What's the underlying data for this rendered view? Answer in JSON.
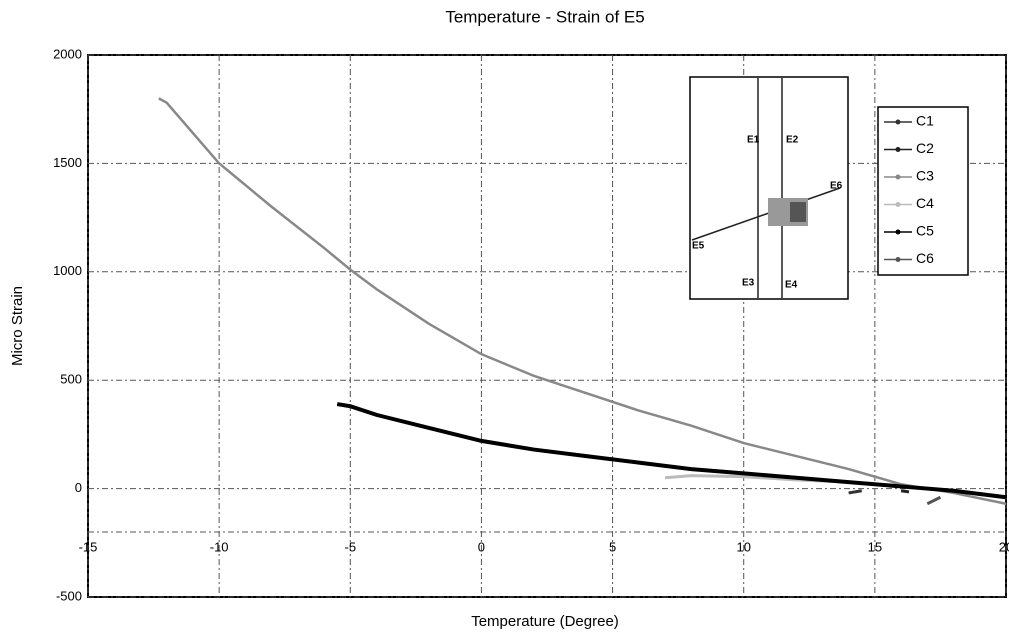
{
  "chart_data": {
    "type": "line",
    "title": "Temperature - Strain of E5",
    "xlabel": "Temperature (Degree)",
    "ylabel": "Micro Strain",
    "xlim": [
      -15,
      20
    ],
    "xticks": [
      -15,
      -10,
      -5,
      0,
      5,
      10,
      15,
      20
    ],
    "ylim": [
      -500,
      2000
    ],
    "yticks": [
      -500,
      0,
      500,
      1000,
      1500,
      2000
    ],
    "grid": true,
    "legend": "upper right",
    "inset_labels": [
      "E1",
      "E2",
      "E3",
      "E4",
      "E5",
      "E6"
    ],
    "series": [
      {
        "name": "C1",
        "color": "#333333",
        "x": [
          14,
          14.5
        ],
        "values": [
          -20,
          -10
        ]
      },
      {
        "name": "C2",
        "color": "#222222",
        "x": [
          16,
          16.3
        ],
        "values": [
          -10,
          -15
        ]
      },
      {
        "name": "C3",
        "color": "#888888",
        "x": [
          -12.3,
          -12,
          -11,
          -10,
          -8,
          -6,
          -5,
          -4,
          -2,
          0,
          2,
          4,
          6,
          8,
          10,
          12,
          14,
          16,
          18,
          20
        ],
        "values": [
          1800,
          1780,
          1640,
          1500,
          1300,
          1110,
          1010,
          920,
          760,
          620,
          520,
          440,
          360,
          290,
          210,
          150,
          90,
          20,
          -20,
          -70
        ]
      },
      {
        "name": "C4",
        "color": "#bbbbbb",
        "x": [
          7,
          8,
          10,
          12,
          14,
          16
        ],
        "values": [
          50,
          60,
          55,
          40,
          30,
          10
        ]
      },
      {
        "name": "C5",
        "color": "#000000",
        "x": [
          -5.5,
          -5,
          -4,
          -2,
          0,
          2,
          4,
          6,
          8,
          10,
          12,
          14,
          16,
          18,
          20
        ],
        "values": [
          390,
          380,
          340,
          280,
          220,
          180,
          150,
          120,
          90,
          70,
          50,
          30,
          10,
          -10,
          -40
        ]
      },
      {
        "name": "C6",
        "color": "#555555",
        "x": [
          17,
          17.5
        ],
        "values": [
          -70,
          -40
        ]
      }
    ]
  }
}
